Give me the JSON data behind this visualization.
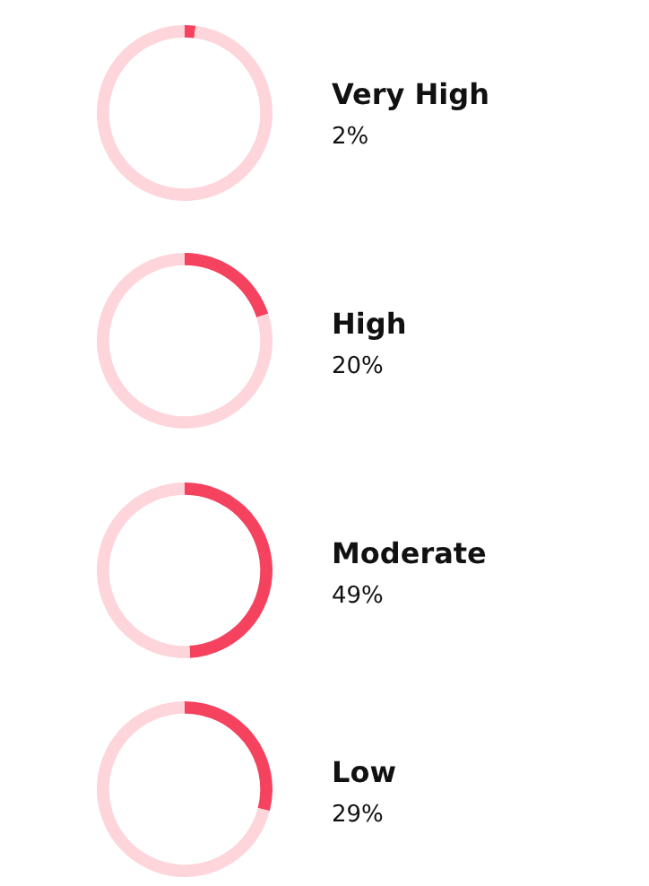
{
  "chart_data": [
    {
      "type": "donut",
      "title": "Very High",
      "subtitle": "2%",
      "categories": [
        null,
        null
      ],
      "values": [
        2,
        98
      ],
      "colors": [
        "#f4425f",
        "#fdd5db"
      ]
    },
    {
      "type": "donut",
      "title": "High",
      "subtitle": "20%",
      "categories": [
        null,
        null
      ],
      "values": [
        20,
        80
      ],
      "colors": [
        "#f4425f",
        "#fdd5db"
      ]
    },
    {
      "type": "donut",
      "title": "Moderate",
      "subtitle": "49%",
      "categories": [
        null,
        null
      ],
      "values": [
        49,
        51
      ],
      "colors": [
        "#f4425f",
        "#fdd5db"
      ]
    },
    {
      "type": "donut",
      "title": "Low",
      "subtitle": "29%",
      "categories": [
        null,
        null
      ],
      "values": [
        29,
        71
      ],
      "colors": [
        "#f4425f",
        "#fdd5db"
      ]
    }
  ]
}
